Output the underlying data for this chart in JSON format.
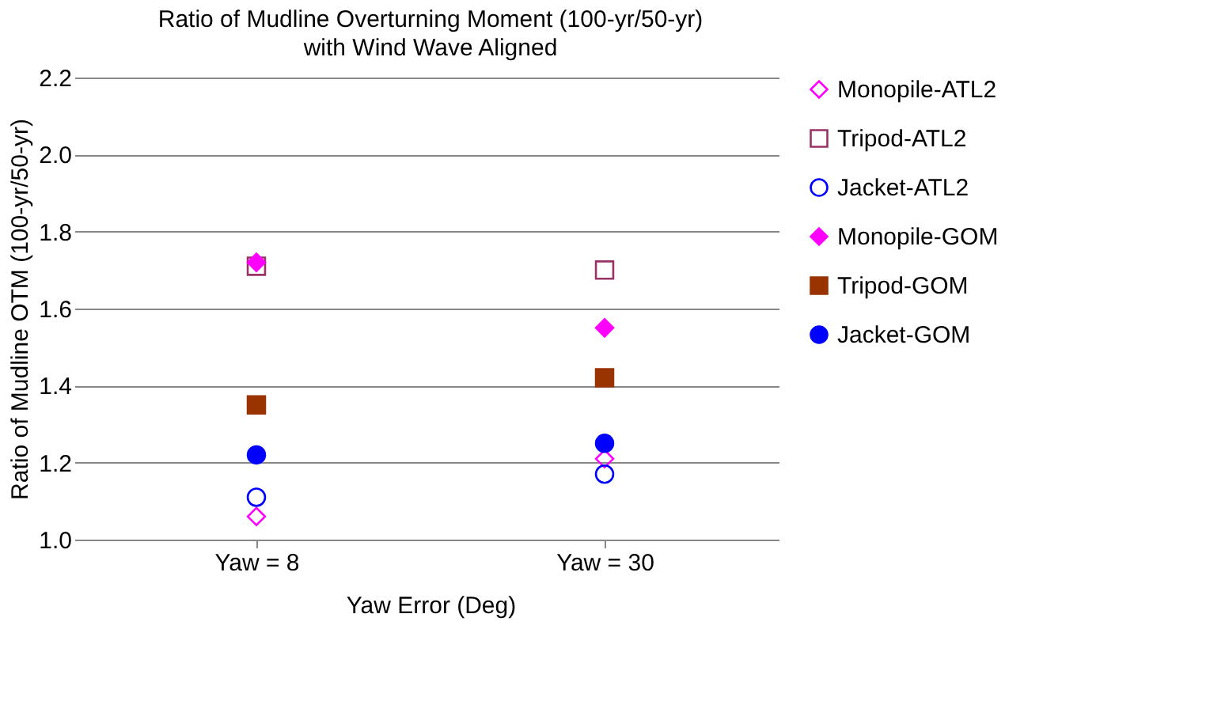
{
  "chart_data": {
    "type": "scatter",
    "title": "Ratio of Mudline Overturning Moment (100-yr/50-yr)",
    "subtitle": "with Wind Wave Aligned",
    "xlabel": "Yaw Error (Deg)",
    "ylabel": "Ratio of Mudline OTM (100-yr/50-yr)",
    "categories": [
      "Yaw = 8",
      "Yaw = 30"
    ],
    "ylim": [
      1.0,
      2.2
    ],
    "yticks": [
      {
        "value": 1.0,
        "label": "1.0"
      },
      {
        "value": 1.2,
        "label": "1.2"
      },
      {
        "value": 1.4,
        "label": "1.4"
      },
      {
        "value": 1.6,
        "label": "1.6"
      },
      {
        "value": 1.8,
        "label": "1.8"
      },
      {
        "value": 2.0,
        "label": "2.0"
      },
      {
        "value": 2.2,
        "label": "2.2"
      }
    ],
    "grid": "y",
    "legend": "right",
    "series": [
      {
        "name": "Monopile-ATL2",
        "color": "#ff00ff",
        "marker": "diamond",
        "values": [
          1.06,
          1.21
        ]
      },
      {
        "name": "Tripod-ATL2",
        "color": "#993366",
        "marker": "square",
        "values": [
          1.71,
          1.7
        ]
      },
      {
        "name": "Jacket-ATL2",
        "color": "#0000ff",
        "marker": "circle",
        "values": [
          1.11,
          1.17
        ]
      },
      {
        "name": "Monopile-GOM",
        "color": "#ff00ff",
        "marker": "diamond",
        "values": [
          1.72,
          1.55
        ]
      },
      {
        "name": "Tripod-GOM",
        "color": "#993300",
        "marker": "square",
        "values": [
          1.35,
          1.42
        ]
      },
      {
        "name": "Jacket-GOM",
        "color": "#0000ff",
        "marker": "circle",
        "values": [
          1.22,
          1.25
        ]
      }
    ]
  }
}
